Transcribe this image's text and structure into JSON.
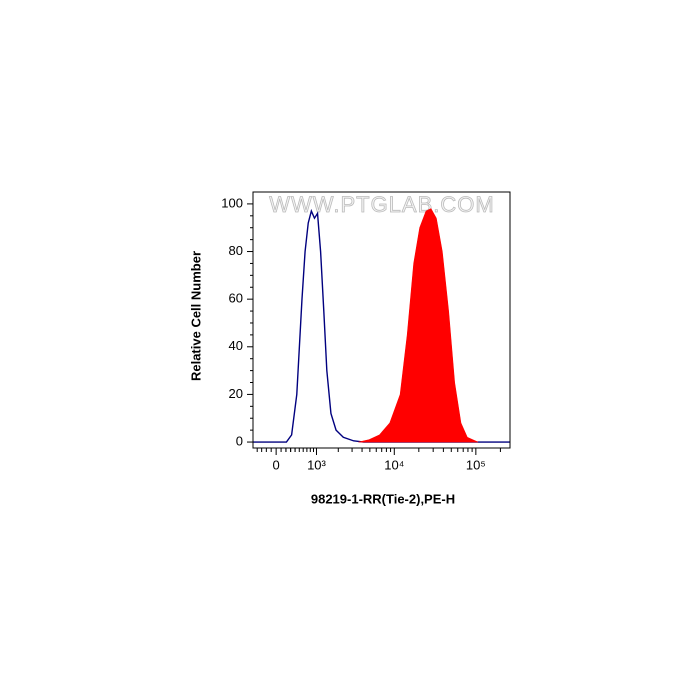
{
  "chart_data": {
    "type": "area",
    "watermark": "WWW.PTGLAB.COM",
    "x_label": "98219-1-RR(Tie-2),PE-H",
    "y_label": "Relative Cell Number",
    "x_scale": "biexponential",
    "xlim": [
      -500,
      262144
    ],
    "ylim": [
      -2.5,
      105
    ],
    "xticks": [
      0,
      {
        "value": 1000,
        "label": "10³"
      },
      {
        "value": 10000,
        "label": "10⁴"
      },
      {
        "value": 100000,
        "label": "10⁵"
      }
    ],
    "yticks": [
      0,
      20,
      40,
      60,
      80,
      100
    ],
    "series": [
      {
        "color": "#00007f",
        "style": "line",
        "x": [
          -500,
          210,
          322,
          440,
          568,
          650,
          739,
          832,
          932,
          1037,
          1150,
          1277,
          1407,
          1600,
          1870,
          2320,
          3140,
          4200,
          262144
        ],
        "values": [
          0,
          0,
          3,
          20,
          60,
          80,
          92,
          97,
          94,
          96,
          80,
          55,
          30,
          12,
          5,
          2,
          0.5,
          0,
          0
        ]
      },
      {
        "color": "#ff0000",
        "style": "fill",
        "x": [
          3640,
          4900,
          6570,
          8800,
          11800,
          14400,
          17300,
          20500,
          24500,
          28200,
          32800,
          38800,
          46400,
          55000,
          65700,
          78500,
          105700
        ],
        "values": [
          0,
          1,
          3,
          8,
          20,
          45,
          75,
          90,
          97,
          98,
          94,
          80,
          55,
          25,
          8,
          2,
          0
        ]
      }
    ]
  }
}
